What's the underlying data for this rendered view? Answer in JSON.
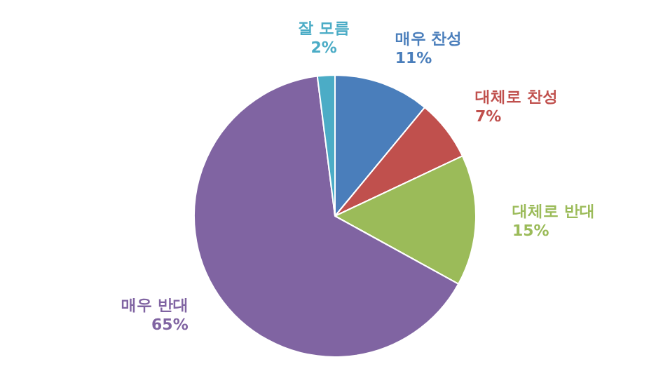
{
  "chart_data": {
    "type": "pie",
    "categories": [
      "매우 찬성",
      "대체로 찬성",
      "대체로 반대",
      "매우 반대",
      "잘 모름"
    ],
    "values": [
      11,
      7,
      15,
      65,
      2
    ],
    "colors": [
      "#4a7ebb",
      "#c0504d",
      "#9bbb59",
      "#8064a2",
      "#4bacc6"
    ],
    "value_labels": [
      "11%",
      "7%",
      "15%",
      "65%",
      "2%"
    ],
    "legend": false
  }
}
